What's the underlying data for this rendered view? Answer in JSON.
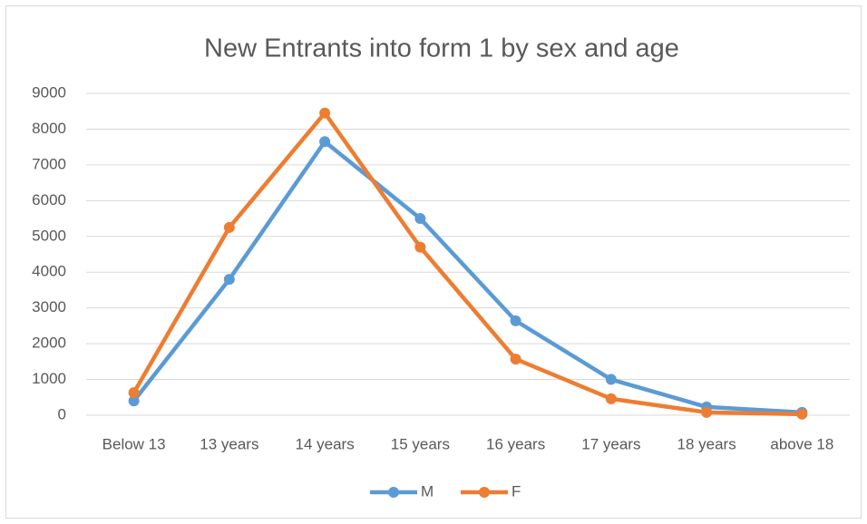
{
  "chart_data": {
    "type": "line",
    "title": "New Entrants into form 1 by sex and age",
    "categories": [
      "Below 13",
      "13 years",
      "14 years",
      "15 years",
      "16 years",
      "17 years",
      "18 years",
      "above 18"
    ],
    "series": [
      {
        "name": "M",
        "color": "#5b9bd5",
        "values": [
          400,
          3800,
          7650,
          5500,
          2640,
          1000,
          230,
          80
        ]
      },
      {
        "name": "F",
        "color": "#ed7d31",
        "values": [
          630,
          5250,
          8450,
          4700,
          1570,
          460,
          80,
          30
        ]
      }
    ],
    "ylim": [
      0,
      9000
    ],
    "yticks": [
      0,
      1000,
      2000,
      3000,
      4000,
      5000,
      6000,
      7000,
      8000,
      9000
    ],
    "grid": true,
    "legend": "bottom"
  }
}
